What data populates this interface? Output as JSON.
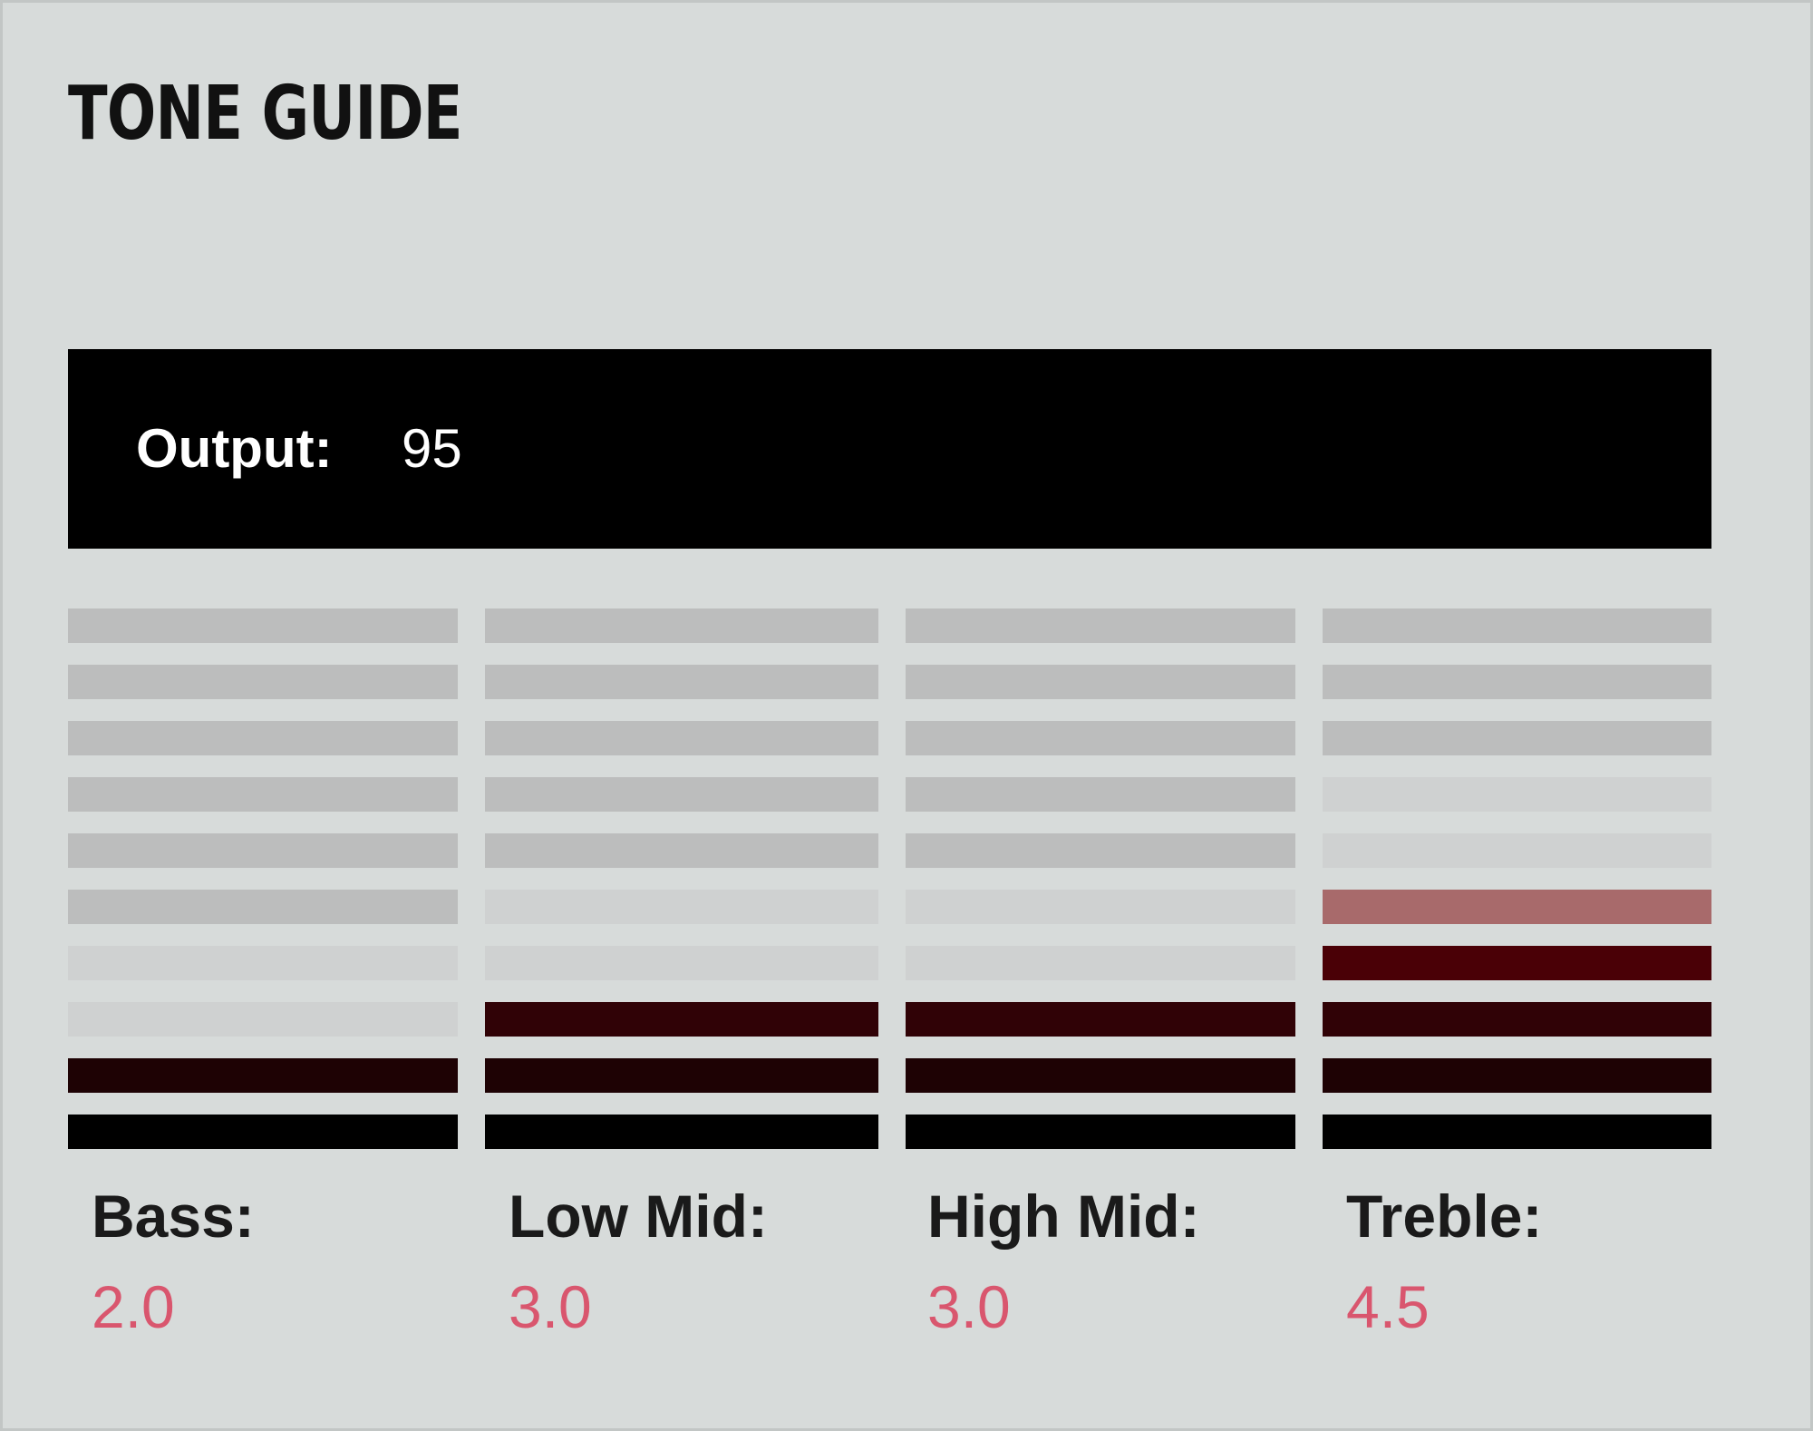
{
  "title": "TONE GUIDE",
  "output": {
    "label": "Output:",
    "value": "95"
  },
  "chart_data": {
    "type": "bar",
    "scale_segments": 10,
    "categories": [
      "Bass:",
      "Low Mid:",
      "High Mid:",
      "Treble:"
    ],
    "values": [
      2.0,
      3.0,
      3.0,
      4.5
    ],
    "value_labels": [
      "2.0",
      "3.0",
      "3.0",
      "4.5"
    ],
    "ylim": [
      0,
      10
    ],
    "grid": false,
    "colors": {
      "inactive": "#bcbdbd",
      "near_inactive": "#cfd1d1",
      "active_base": "#000000",
      "active_second": "#1e0204",
      "active_third": "#300206",
      "active_fourth": "#4a0006",
      "half_step": "#a86a6b",
      "value_text": "#d9566e"
    }
  }
}
